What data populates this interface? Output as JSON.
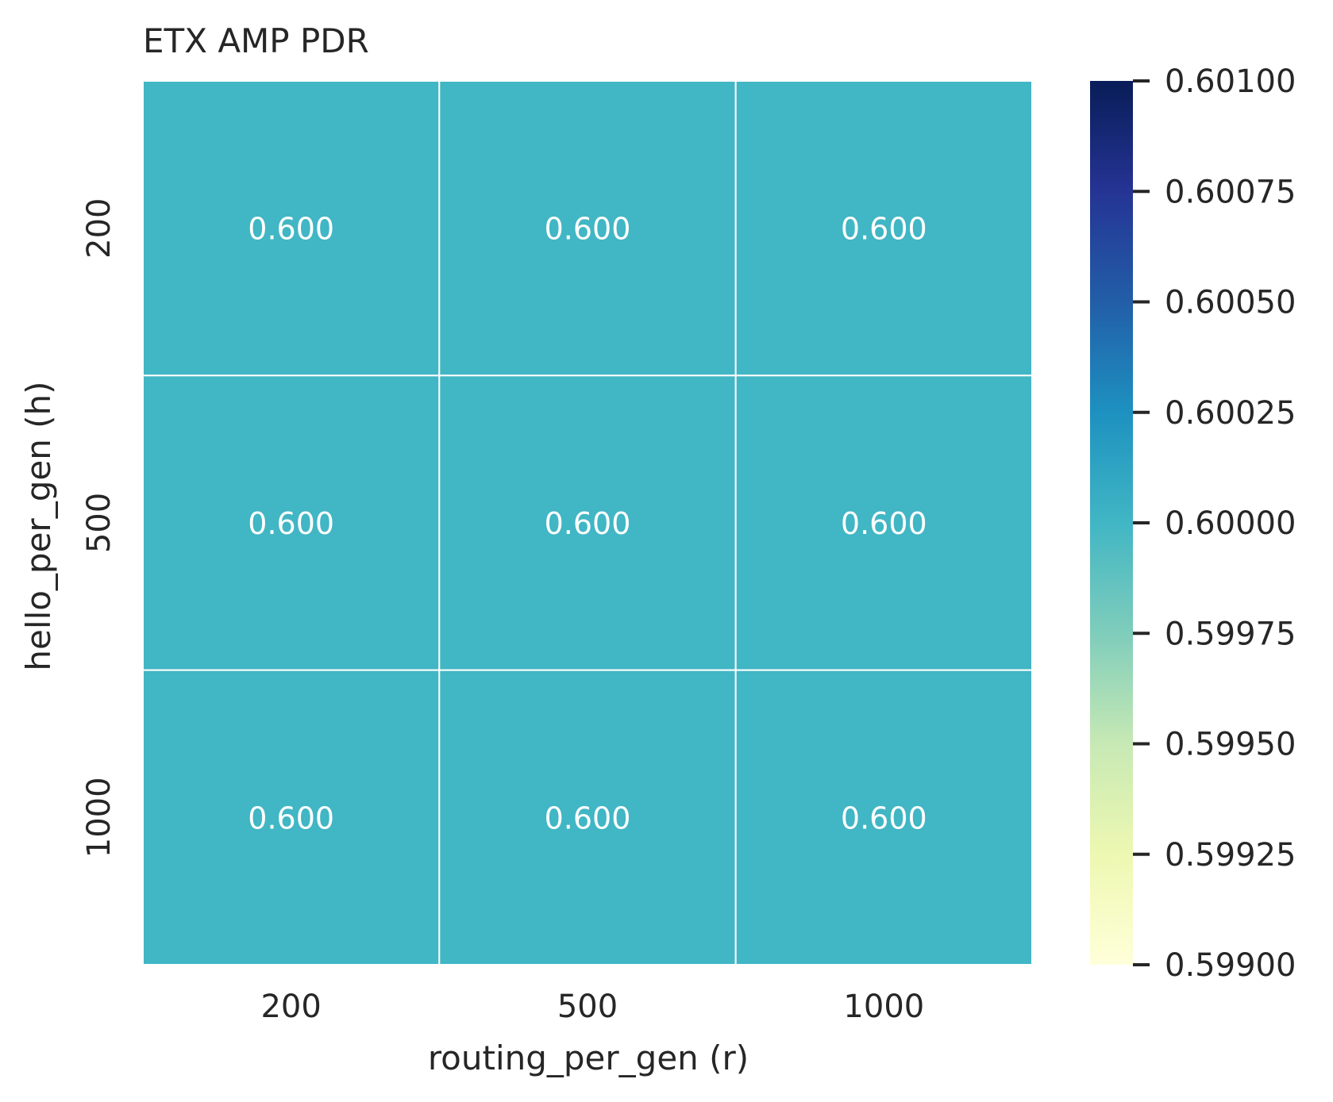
{
  "chart_data": {
    "type": "heatmap",
    "title": "ETX AMP PDR",
    "xlabel": "routing_per_gen (r)",
    "ylabel": "hello_per_gen (h)",
    "x_categories": [
      "200",
      "500",
      "1000"
    ],
    "y_categories": [
      "200",
      "500",
      "1000"
    ],
    "values": [
      [
        0.6,
        0.6,
        0.6
      ],
      [
        0.6,
        0.6,
        0.6
      ],
      [
        0.6,
        0.6,
        0.6
      ]
    ],
    "cell_labels": [
      [
        "0.600",
        "0.600",
        "0.600"
      ],
      [
        "0.600",
        "0.600",
        "0.600"
      ],
      [
        "0.600",
        "0.600",
        "0.600"
      ]
    ],
    "colorbar": {
      "colormap": "YlGnBu",
      "vmin": 0.599,
      "vmax": 0.601,
      "ticks": [
        0.599,
        0.59925,
        0.5995,
        0.59975,
        0.6,
        0.60025,
        0.6005,
        0.60075,
        0.601
      ],
      "tick_labels": [
        "0.59900",
        "0.59925",
        "0.59950",
        "0.59975",
        "0.60000",
        "0.60025",
        "0.60050",
        "0.60075",
        "0.60100"
      ],
      "stops": [
        "#ffffd9",
        "#edf8b1",
        "#c7e9b4",
        "#7fcdbb",
        "#41b6c4",
        "#1d91c0",
        "#225ea8",
        "#253494",
        "#081d58"
      ]
    },
    "annotation_color": "#ffffff",
    "grid_line_color": "#ffffff"
  }
}
